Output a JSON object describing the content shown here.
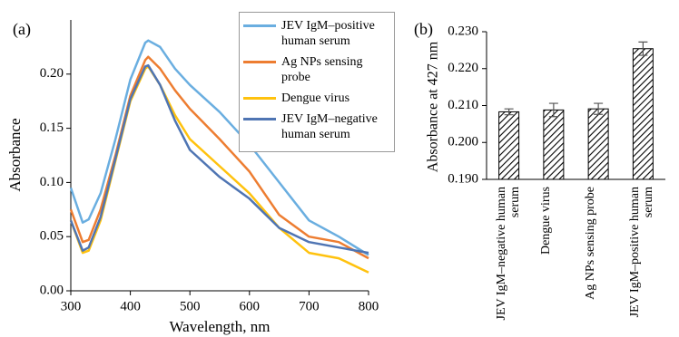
{
  "chart_data": [
    {
      "type": "line",
      "panel_label": "(a)",
      "x_label": "Wavelength, nm",
      "y_label": "Absorbance",
      "x": [
        300,
        320,
        330,
        350,
        375,
        400,
        425,
        430,
        450,
        475,
        500,
        550,
        600,
        650,
        700,
        750,
        800
      ],
      "series": [
        {
          "name": "JEV IgM–positive human serum",
          "color": "#6aaee0",
          "values": [
            0.095,
            0.063,
            0.066,
            0.09,
            0.14,
            0.195,
            0.229,
            0.231,
            0.225,
            0.205,
            0.19,
            0.165,
            0.135,
            0.1,
            0.065,
            0.05,
            0.033
          ]
        },
        {
          "name": "Ag NPs sensing probe",
          "color": "#ed7d31",
          "values": [
            0.075,
            0.045,
            0.047,
            0.075,
            0.125,
            0.18,
            0.213,
            0.216,
            0.205,
            0.185,
            0.168,
            0.14,
            0.11,
            0.07,
            0.05,
            0.045,
            0.03
          ]
        },
        {
          "name": "Dengue virus",
          "color": "#ffc20e",
          "values": [
            0.065,
            0.035,
            0.037,
            0.065,
            0.12,
            0.175,
            0.205,
            0.207,
            0.19,
            0.162,
            0.14,
            0.115,
            0.09,
            0.058,
            0.035,
            0.03,
            0.017
          ]
        },
        {
          "name": "JEV IgM–negative human serum",
          "color": "#4f75b3",
          "values": [
            0.065,
            0.037,
            0.04,
            0.068,
            0.122,
            0.177,
            0.207,
            0.208,
            0.19,
            0.157,
            0.13,
            0.105,
            0.085,
            0.058,
            0.045,
            0.04,
            0.035
          ]
        }
      ],
      "xlim": [
        300,
        800
      ],
      "xticks": [
        300,
        400,
        500,
        600,
        700,
        800
      ],
      "ylim": [
        0,
        0.25
      ],
      "yticks": [
        {
          "value": 0,
          "label": "0.00"
        },
        0.05,
        {
          "value": 0.1,
          "label": "0.10"
        },
        0.15,
        {
          "value": 0.2,
          "label": "0.20"
        }
      ]
    },
    {
      "type": "bar",
      "panel_label": "(b)",
      "y_label": "Absorbance at 427 nm",
      "categories": [
        "JEV IgM–negative human serum",
        "Dengue virus",
        "Ag NPs sensing probe",
        "JEV IgM–positive human serum"
      ],
      "values": [
        0.2083,
        0.2088,
        0.2091,
        0.2254
      ],
      "errors": [
        0.0008,
        0.0018,
        0.0015,
        0.0018
      ],
      "ylim": [
        0.19,
        0.23
      ],
      "yticks": [
        {
          "value": 0.19,
          "label": "0.190"
        },
        {
          "value": 0.2,
          "label": "0.200"
        },
        {
          "value": 0.21,
          "label": "0.210"
        },
        {
          "value": 0.22,
          "label": "0.220"
        },
        {
          "value": 0.23,
          "label": "0.230"
        }
      ]
    }
  ]
}
